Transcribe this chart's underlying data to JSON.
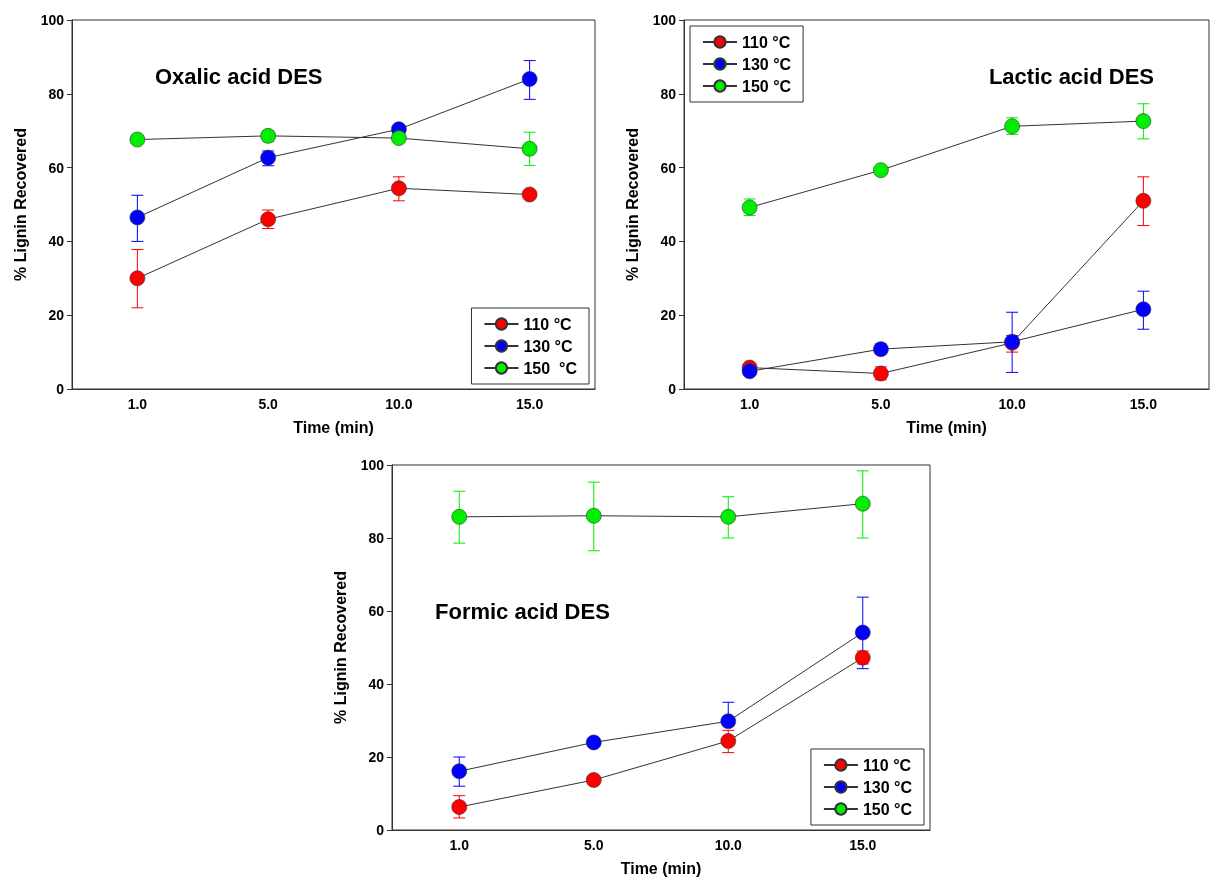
{
  "chart_data": [
    {
      "type": "line",
      "title": "Oxalic acid DES",
      "xlabel": "Time (min)",
      "ylabel": "% Lignin Recovered",
      "categories": [
        "1.0",
        "5.0",
        "10.0",
        "15.0"
      ],
      "ylim": [
        0,
        100
      ],
      "yticks": [
        0,
        20,
        40,
        60,
        80,
        100
      ],
      "grid": false,
      "legend": "bottom right",
      "marker": "circle",
      "line_style": "solid",
      "series": [
        {
          "name": "110 °C",
          "color": "#ff0000",
          "values": [
            30,
            46,
            54.4,
            52.7
          ],
          "errors": [
            [
              22,
              37.8
            ],
            [
              43.5,
              48.5
            ],
            [
              51,
              57.5
            ],
            null
          ]
        },
        {
          "name": "130 °C",
          "color": "#0000ff",
          "values": [
            46.5,
            62.7,
            70.4,
            84
          ],
          "errors": [
            [
              40,
              52.5
            ],
            [
              60.5,
              64.5
            ],
            null,
            [
              78.5,
              89
            ]
          ]
        },
        {
          "name": "150  °C",
          "color": "#00ee00",
          "values": [
            67.6,
            68.6,
            68,
            65.1
          ],
          "errors": [
            null,
            [
              67,
              70
            ],
            null,
            [
              60.6,
              69.6
            ]
          ]
        }
      ]
    },
    {
      "type": "line",
      "title": "Lactic acid DES",
      "xlabel": "Time (min)",
      "ylabel": "% Lignin Recovered",
      "categories": [
        "1.0",
        "5.0",
        "10.0",
        "15.0"
      ],
      "ylim": [
        0,
        100
      ],
      "yticks": [
        0,
        20,
        40,
        60,
        80,
        100
      ],
      "grid": false,
      "legend": "top left",
      "marker": "circle",
      "line_style": "solid",
      "series": [
        {
          "name": "110 °C",
          "color": "#ff0000",
          "values": [
            5.8,
            4.2,
            12.5,
            51
          ],
          "errors": [
            null,
            [
              2.5,
              6
            ],
            [
              10,
              14.5
            ],
            [
              44.3,
              57.5
            ]
          ]
        },
        {
          "name": "130 °C",
          "color": "#0000ff",
          "values": [
            4.8,
            10.8,
            12.8,
            21.6
          ],
          "errors": [
            null,
            [
              9.5,
              12.2
            ],
            [
              4.5,
              20.8
            ],
            [
              16.2,
              26.5
            ]
          ]
        },
        {
          "name": "150 °C",
          "color": "#00ee00",
          "values": [
            49.2,
            59.3,
            71.2,
            72.6
          ],
          "errors": [
            [
              47,
              51.5
            ],
            null,
            [
              69,
              73.5
            ],
            [
              67.8,
              77.3
            ]
          ]
        }
      ]
    },
    {
      "type": "line",
      "title": "Formic acid DES",
      "xlabel": "Time (min)",
      "ylabel": "% Lignin Recovered",
      "categories": [
        "1.0",
        "5.0",
        "10.0",
        "15.0"
      ],
      "ylim": [
        0,
        100
      ],
      "yticks": [
        0,
        20,
        40,
        60,
        80,
        100
      ],
      "grid": false,
      "legend": "bottom right",
      "marker": "circle",
      "line_style": "solid",
      "series": [
        {
          "name": "110 °C",
          "color": "#ff0000",
          "values": [
            6.3,
            13.7,
            24.4,
            47.2
          ],
          "errors": [
            [
              3.3,
              9.4
            ],
            [
              12.5,
              14.8
            ],
            [
              21.2,
              27.3
            ],
            [
              45.5,
              49
            ]
          ]
        },
        {
          "name": "130 °C",
          "color": "#0000ff",
          "values": [
            16.1,
            24,
            29.8,
            54.1
          ],
          "errors": [
            [
              12,
              20
            ],
            [
              23,
              25
            ],
            [
              29.8,
              35
            ],
            [
              44.2,
              63.8
            ]
          ]
        },
        {
          "name": "150 °C",
          "color": "#00ee00",
          "values": [
            85.8,
            86.1,
            85.8,
            89.4
          ],
          "errors": [
            [
              78.6,
              92.8
            ],
            [
              76.5,
              95.3
            ],
            [
              80,
              91.3
            ],
            [
              80,
              98.4
            ]
          ]
        }
      ]
    }
  ]
}
